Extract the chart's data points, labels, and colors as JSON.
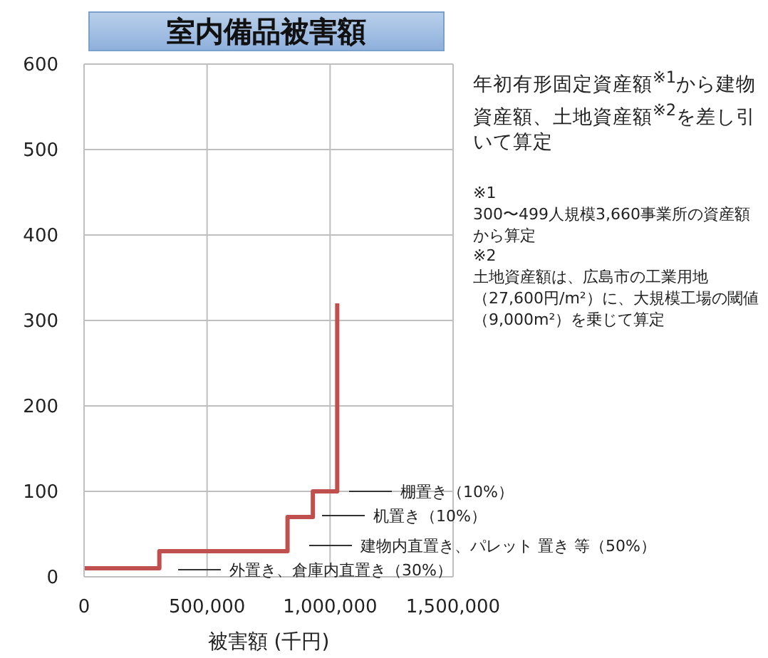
{
  "chart_data": {
    "type": "step",
    "title": "室内備品被害額",
    "xlabel": "被害額 (千円)",
    "x": [
      0,
      306000,
      827000,
      930000,
      1029000
    ],
    "series": [
      {
        "color": "#c0504d",
        "values": [
          10,
          30,
          70,
          100,
          320
        ]
      }
    ],
    "xlim": [
      0,
      1500000
    ],
    "xticks": [
      {
        "value": 0,
        "label": "0"
      },
      {
        "value": 500000,
        "label": "500,000"
      },
      {
        "value": 1000000,
        "label": "1,000,000"
      },
      {
        "value": 1500000,
        "label": "1,500,000"
      }
    ],
    "ylim": [
      0,
      600
    ],
    "yticks": [
      0,
      100,
      200,
      300,
      400,
      500,
      600
    ],
    "grid": true,
    "marker": "none",
    "line_style": "solid",
    "annotations": [
      "棚置き（10%）",
      "机置き（10%）",
      "建物内直置き、パレット 置き 等（50%）",
      "外置き、倉庫内直置き（30%）",
      "年初有形固定資産額$^{※1}$から建物資産額、土地資産額$^{※2}$を差し引いて算定",
      "※1",
      "300〜499人規模3,660事業所の資産額から算定",
      "※2",
      "土地資産額は、広島市の工業用地（27,600円/m²）に、大規模工場の閾値（9,000m²）を乗じて算定"
    ]
  }
}
